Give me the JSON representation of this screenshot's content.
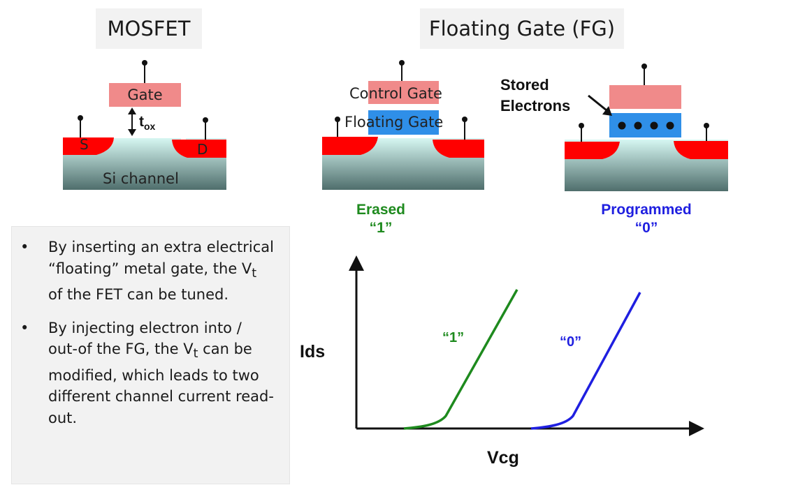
{
  "titles": {
    "mosfet": "MOSFET",
    "floating_gate": "Floating Gate (FG)"
  },
  "mosfet": {
    "gate": "Gate",
    "tox_main": "t",
    "tox_sub": "ox",
    "source": "S",
    "drain": "D",
    "channel": "Si channel"
  },
  "fg_erased": {
    "control_gate": "Control Gate",
    "floating_gate": "Floating Gate",
    "state_name": "Erased",
    "state_value": "“1”"
  },
  "fg_programmed": {
    "stored_line1": "Stored",
    "stored_line2": "Electrons",
    "state_name": "Programmed",
    "state_value": "“0”"
  },
  "bullets": {
    "item1": {
      "pre": "By inserting an extra electrical “floating” metal gate, the V",
      "sub": "t",
      "post": " of the FET can be tuned."
    },
    "item2": {
      "pre": "By injecting electron into / out-of the FG, the V",
      "sub": "t",
      "post": "  can be modified, which leads to two different channel current read-out."
    },
    "bullet_char": "•"
  },
  "colors": {
    "gate": "#f08a8a",
    "source_drain": "#ff0000",
    "floating_gate": "#2f8fe8",
    "erased": "#1e8a1e",
    "programmed": "#1f1fe0"
  },
  "chart_data": {
    "type": "line",
    "xlabel": "Vcg",
    "ylabel": "Ids",
    "series": [
      {
        "name": "“1”",
        "color": "#1e8a1e"
      },
      {
        "name": "“0”",
        "color": "#1f1fe0"
      }
    ]
  }
}
